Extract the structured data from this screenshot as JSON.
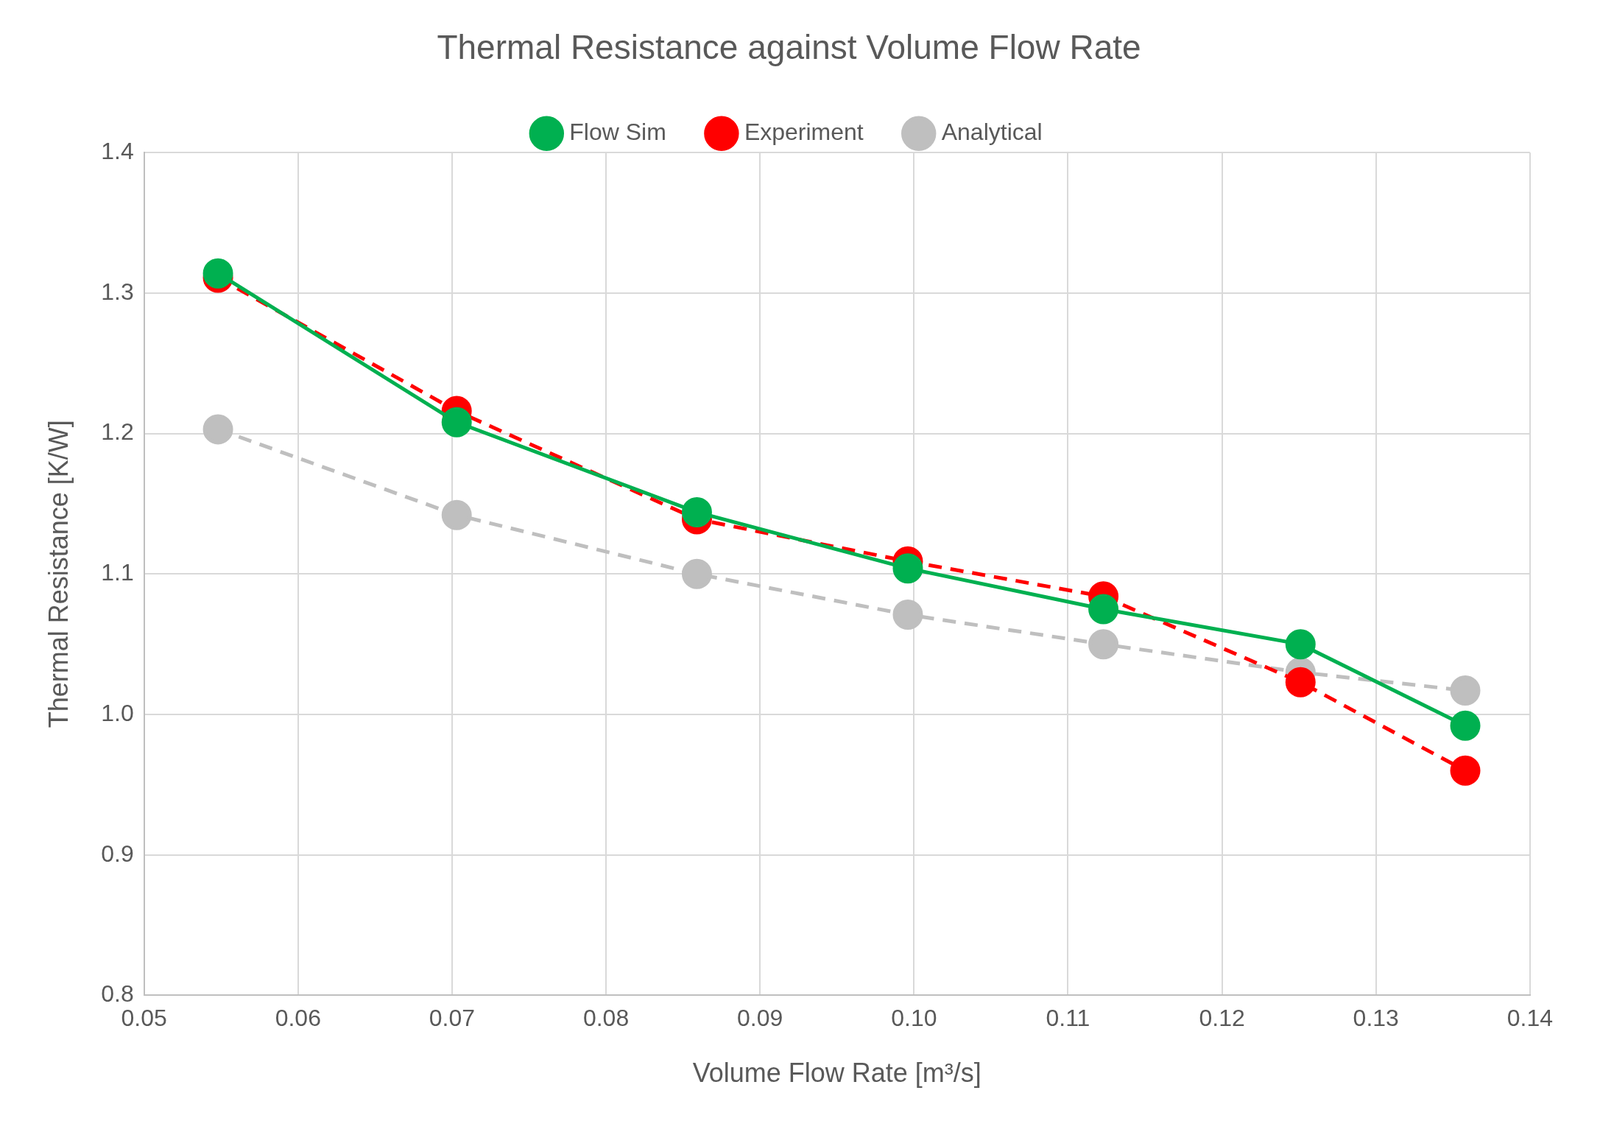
{
  "chart_data": {
    "type": "line",
    "title": "Thermal Resistance against Volume Flow Rate",
    "x_label": "Volume Flow Rate [m³/s]",
    "y_label": "Thermal Resistance [K/W]",
    "x": [
      0.0548,
      0.0703,
      0.0859,
      0.0996,
      0.1123,
      0.1251,
      0.1358
    ],
    "series": [
      {
        "name": "Analytical",
        "color": "#bfbfbf",
        "marker": "circle",
        "line_style": "dashed",
        "values": [
          1.203,
          1.142,
          1.1,
          1.071,
          1.05,
          1.03,
          1.017
        ]
      },
      {
        "name": "Experiment",
        "color": "#ff0000",
        "marker": "circle",
        "line_style": "dashed",
        "values": [
          1.311,
          1.216,
          1.139,
          1.109,
          1.084,
          1.023,
          0.96
        ]
      },
      {
        "name": "Flow Sim",
        "color": "#00b050",
        "marker": "circle",
        "line_style": "solid",
        "values": [
          1.314,
          1.208,
          1.144,
          1.104,
          1.075,
          1.05,
          0.992
        ]
      }
    ],
    "xlim": [
      0.05,
      0.14
    ],
    "xticks": [
      0.05,
      0.06,
      0.07,
      0.08,
      0.09,
      {
        "value": 0.1,
        "label": "0.10"
      },
      0.11,
      0.12,
      0.13,
      0.14
    ],
    "ylim": [
      0.8,
      1.4
    ],
    "yticks": [
      0.8,
      0.9,
      {
        "value": 1.0,
        "label": "1.0"
      },
      1.1,
      1.2,
      1.3,
      1.4
    ],
    "grid": true,
    "legend": "top"
  }
}
